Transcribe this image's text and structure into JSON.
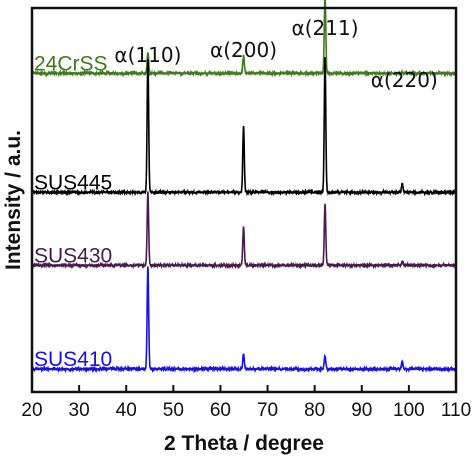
{
  "chart_data": {
    "type": "line",
    "xlabel": "2 Theta / degree",
    "ylabel": "Intensity / a.u.",
    "xlim": [
      20,
      110
    ],
    "xticks": [
      20,
      30,
      40,
      50,
      60,
      70,
      80,
      90,
      100,
      110
    ],
    "yticks": "none",
    "grid": false,
    "legend": "inline labels",
    "peak_labels": [
      {
        "text": "α(110)",
        "x": 44.6
      },
      {
        "text": "α(200)",
        "x": 64.9
      },
      {
        "text": "α(211)",
        "x": 82.2
      },
      {
        "text": "α(220)",
        "x": 98.6
      }
    ],
    "series": [
      {
        "name": "24CrSS",
        "color": "#3f7a1e",
        "baseline": 0.83,
        "peaks": [
          {
            "x": 44.6,
            "height": 0.055
          },
          {
            "x": 64.9,
            "height": 0.045
          },
          {
            "x": 82.2,
            "height": 0.205
          },
          {
            "x": 98.6,
            "height": 0.003
          }
        ]
      },
      {
        "name": "SUS445",
        "color": "#000000",
        "baseline": 0.52,
        "peaks": [
          {
            "x": 44.6,
            "height": 0.35
          },
          {
            "x": 64.9,
            "height": 0.17
          },
          {
            "x": 82.2,
            "height": 0.35
          },
          {
            "x": 98.6,
            "height": 0.023
          }
        ]
      },
      {
        "name": "SUS430",
        "color": "#4a1a4f",
        "baseline": 0.33,
        "peaks": [
          {
            "x": 44.6,
            "height": 0.19
          },
          {
            "x": 64.9,
            "height": 0.1
          },
          {
            "x": 82.2,
            "height": 0.16
          },
          {
            "x": 98.6,
            "height": 0.01
          }
        ]
      },
      {
        "name": "SUS410",
        "color": "#1a10e0",
        "baseline": 0.06,
        "peaks": [
          {
            "x": 44.6,
            "height": 0.265
          },
          {
            "x": 64.9,
            "height": 0.04
          },
          {
            "x": 82.2,
            "height": 0.035
          },
          {
            "x": 98.6,
            "height": 0.018
          }
        ]
      }
    ]
  }
}
